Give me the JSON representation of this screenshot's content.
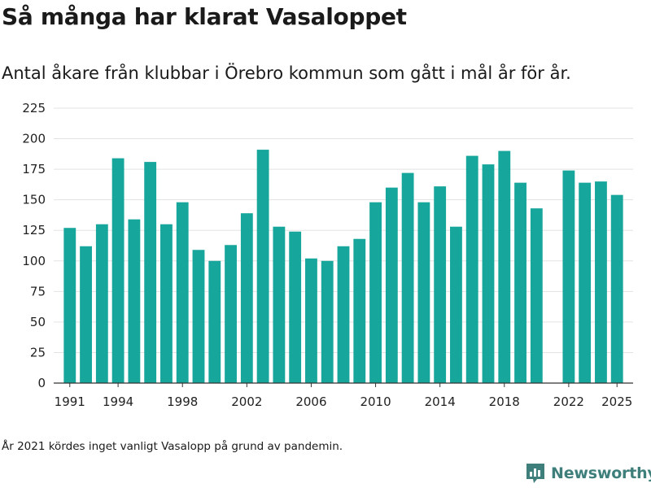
{
  "header": {
    "title": "Så många har klarat Vasaloppet",
    "subtitle": "Antal åkare från klubbar i Örebro kommun som gått i mål år för år."
  },
  "footer": {
    "note": "År 2021 kördes inget vanligt Vasalopp på grund av pandemin.",
    "brand": "Newsworthy",
    "brand_icon": "bar-chart-icon"
  },
  "colors": {
    "bar": "#16a69b",
    "grid": "#e3e3e3",
    "axis": "#333333",
    "brand": "#3e7f7b"
  },
  "chart_data": {
    "type": "bar",
    "title": "Så många har klarat Vasaloppet",
    "xlabel": "",
    "ylabel": "",
    "ylim": [
      0,
      225
    ],
    "yticks": [
      0,
      25,
      50,
      75,
      100,
      125,
      150,
      175,
      200,
      225
    ],
    "xticks": [
      1991,
      1994,
      1998,
      2002,
      2006,
      2010,
      2014,
      2018,
      2022,
      2025
    ],
    "xlim": [
      1990,
      2026
    ],
    "grid": true,
    "categories": [
      1991,
      1992,
      1993,
      1994,
      1995,
      1996,
      1997,
      1998,
      1999,
      2000,
      2001,
      2002,
      2003,
      2004,
      2005,
      2006,
      2007,
      2008,
      2009,
      2010,
      2011,
      2012,
      2013,
      2014,
      2015,
      2016,
      2017,
      2018,
      2019,
      2020,
      2022,
      2023,
      2024,
      2025
    ],
    "values": [
      127,
      112,
      130,
      184,
      134,
      181,
      130,
      148,
      109,
      100,
      113,
      139,
      191,
      128,
      124,
      102,
      100,
      112,
      118,
      148,
      160,
      172,
      148,
      161,
      128,
      186,
      179,
      190,
      164,
      143,
      174,
      164,
      165,
      154
    ]
  }
}
